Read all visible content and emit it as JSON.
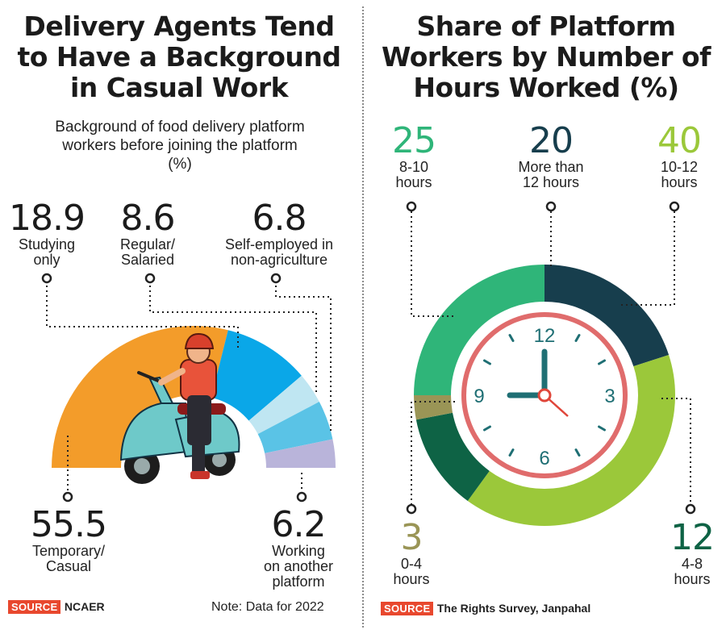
{
  "left": {
    "title_lines": [
      "Delivery Agents Tend",
      "to Have a Background",
      "in Casual Work"
    ],
    "subtitle_lines": [
      "Background of food delivery platform",
      "workers before joining the platform",
      "(%)"
    ],
    "source_badge": "SOURCE",
    "source_text": "NCAER",
    "note": "Note: Data for 2022"
  },
  "right": {
    "title_lines": [
      "Share of Platform",
      "Workers by Number of",
      "Hours Worked (%)"
    ],
    "source_badge": "SOURCE",
    "source_text": "The Rights Survey, Janpahal",
    "clock_numbers": [
      "12",
      "3",
      "6",
      "9"
    ]
  },
  "chart_data": [
    {
      "type": "pie",
      "title": "Delivery Agents Tend to Have a Background in Casual Work",
      "subtitle": "Background of food delivery platform workers before joining the platform (%)",
      "unit": "%",
      "shape": "semi-donut",
      "series": [
        {
          "name": "Temporary/Casual",
          "label_lines": [
            "Temporary/",
            "Casual"
          ],
          "value": 55.5,
          "display": "55.5",
          "color": "#f39c2a"
        },
        {
          "name": "Studying only",
          "label_lines": [
            "Studying",
            "only"
          ],
          "value": 18.9,
          "display": "18.9",
          "color": "#0aa7e8"
        },
        {
          "name": "Self-employed in non-agriculture",
          "label_lines": [
            "Self-employed in",
            "non-agriculture"
          ],
          "value": 6.8,
          "display": "6.8",
          "color": "#bfe6f2"
        },
        {
          "name": "Regular/Salaried",
          "label_lines": [
            "Regular/",
            "Salaried"
          ],
          "value": 8.6,
          "display": "8.6",
          "color": "#5ac3e6"
        },
        {
          "name": "Working on another platform",
          "label_lines": [
            "Working",
            "on another",
            "platform"
          ],
          "value": 6.2,
          "display": "6.2",
          "color": "#b9b4da"
        }
      ],
      "source": "NCAER",
      "note": "Data for 2022"
    },
    {
      "type": "pie",
      "title": "Share of Platform Workers by Number of Hours Worked (%)",
      "unit": "%",
      "shape": "donut",
      "series": [
        {
          "name": "More than 12 hours",
          "label_lines": [
            "More than",
            "12 hours"
          ],
          "value": 20,
          "display": "20",
          "color": "#173e4d"
        },
        {
          "name": "10-12 hours",
          "label_lines": [
            "10-12",
            "hours"
          ],
          "value": 40,
          "display": "40",
          "color": "#9bc83a"
        },
        {
          "name": "4-8 hours",
          "label_lines": [
            "4-8",
            "hours"
          ],
          "value": 12,
          "display": "12",
          "color": "#0e6345"
        },
        {
          "name": "0-4 hours",
          "label_lines": [
            "0-4",
            "hours"
          ],
          "value": 3,
          "display": "3",
          "color": "#9a9556"
        },
        {
          "name": "8-10 hours",
          "label_lines": [
            "8-10",
            "hours"
          ],
          "value": 25,
          "display": "25",
          "color": "#2fb579"
        }
      ],
      "source": "The Rights Survey, Janpahal"
    }
  ]
}
